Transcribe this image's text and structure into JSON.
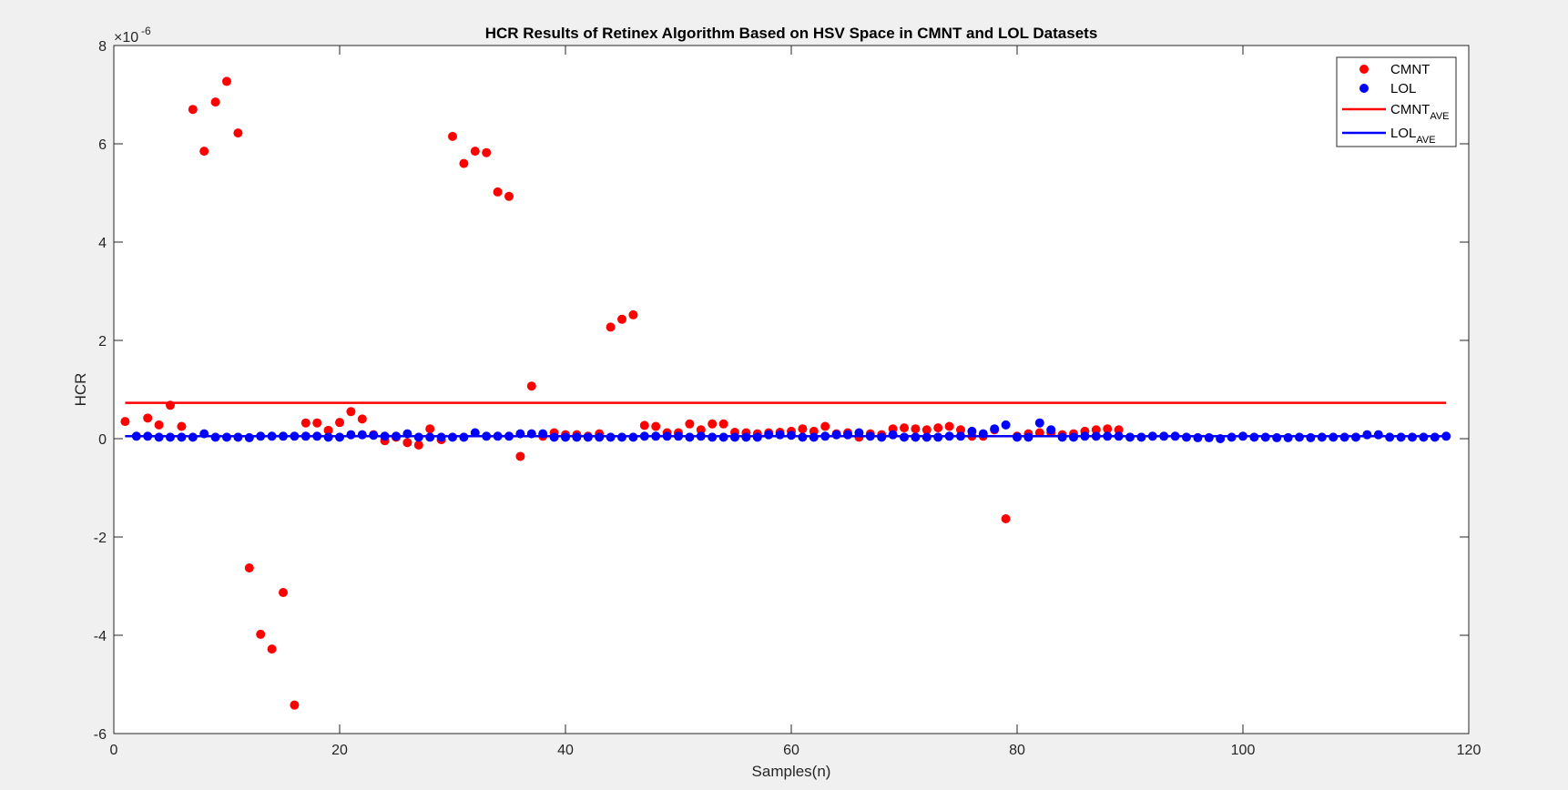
{
  "chart_data": {
    "type": "scatter",
    "title": "HCR Results of Retinex Algorithm Based on HSV Space in CMNT and LOL Datasets",
    "xlabel": "Samples(n)",
    "ylabel": "HCR",
    "y_exponent_base": "×10",
    "y_exponent_power": "-6",
    "xlim": [
      0,
      120
    ],
    "ylim": [
      -6,
      8
    ],
    "x_ticks": [
      0,
      20,
      40,
      60,
      80,
      100,
      120
    ],
    "y_ticks": [
      -6,
      -4,
      -2,
      0,
      2,
      4,
      6,
      8
    ],
    "grid": false,
    "legend_position": "top-right",
    "series": [
      {
        "name": "CMNT",
        "kind": "scatter",
        "color": "#ff0000",
        "points": [
          [
            1,
            0.35
          ],
          [
            3,
            0.42
          ],
          [
            4,
            0.28
          ],
          [
            5,
            0.68
          ],
          [
            6,
            0.25
          ],
          [
            7,
            6.7
          ],
          [
            8,
            5.85
          ],
          [
            9,
            6.85
          ],
          [
            10,
            7.27
          ],
          [
            11,
            6.22
          ],
          [
            12,
            -2.63
          ],
          [
            13,
            -3.98
          ],
          [
            14,
            -4.28
          ],
          [
            15,
            -3.13
          ],
          [
            16,
            -5.42
          ],
          [
            17,
            0.32
          ],
          [
            18,
            0.32
          ],
          [
            19,
            0.17
          ],
          [
            20,
            0.33
          ],
          [
            21,
            0.55
          ],
          [
            22,
            0.4
          ],
          [
            23,
            0.08
          ],
          [
            24,
            -0.04
          ],
          [
            25,
            0.03
          ],
          [
            26,
            -0.08
          ],
          [
            27,
            -0.13
          ],
          [
            28,
            0.2
          ],
          [
            29,
            -0.02
          ],
          [
            30,
            6.15
          ],
          [
            31,
            5.6
          ],
          [
            32,
            5.85
          ],
          [
            33,
            5.82
          ],
          [
            34,
            5.02
          ],
          [
            35,
            4.93
          ],
          [
            36,
            -0.36
          ],
          [
            37,
            1.07
          ],
          [
            38,
            0.05
          ],
          [
            39,
            0.12
          ],
          [
            40,
            0.08
          ],
          [
            41,
            0.08
          ],
          [
            42,
            0.05
          ],
          [
            43,
            0.1
          ],
          [
            44,
            2.27
          ],
          [
            45,
            2.43
          ],
          [
            46,
            2.52
          ],
          [
            47,
            0.27
          ],
          [
            48,
            0.25
          ],
          [
            49,
            0.12
          ],
          [
            50,
            0.12
          ],
          [
            51,
            0.3
          ],
          [
            52,
            0.18
          ],
          [
            53,
            0.3
          ],
          [
            54,
            0.3
          ],
          [
            55,
            0.13
          ],
          [
            56,
            0.12
          ],
          [
            57,
            0.1
          ],
          [
            58,
            0.12
          ],
          [
            59,
            0.13
          ],
          [
            60,
            0.15
          ],
          [
            61,
            0.2
          ],
          [
            62,
            0.15
          ],
          [
            63,
            0.25
          ],
          [
            64,
            0.1
          ],
          [
            65,
            0.12
          ],
          [
            66,
            0.03
          ],
          [
            67,
            0.1
          ],
          [
            68,
            0.08
          ],
          [
            69,
            0.2
          ],
          [
            70,
            0.22
          ],
          [
            71,
            0.2
          ],
          [
            72,
            0.18
          ],
          [
            73,
            0.22
          ],
          [
            74,
            0.25
          ],
          [
            75,
            0.18
          ],
          [
            76,
            0.05
          ],
          [
            77,
            0.05
          ],
          [
            78,
            0.18
          ],
          [
            79,
            -1.63
          ],
          [
            80,
            0.05
          ],
          [
            81,
            0.1
          ],
          [
            82,
            0.12
          ],
          [
            83,
            0.12
          ],
          [
            84,
            0.08
          ],
          [
            85,
            0.1
          ],
          [
            86,
            0.15
          ],
          [
            87,
            0.18
          ],
          [
            88,
            0.2
          ],
          [
            89,
            0.18
          ]
        ]
      },
      {
        "name": "LOL",
        "kind": "scatter",
        "color": "#0000ff",
        "points": [
          [
            2,
            0.05
          ],
          [
            3,
            0.05
          ],
          [
            4,
            0.03
          ],
          [
            5,
            0.03
          ],
          [
            6,
            0.03
          ],
          [
            7,
            0.03
          ],
          [
            8,
            0.1
          ],
          [
            9,
            0.03
          ],
          [
            10,
            0.03
          ],
          [
            11,
            0.03
          ],
          [
            12,
            0.02
          ],
          [
            13,
            0.05
          ],
          [
            14,
            0.05
          ],
          [
            15,
            0.05
          ],
          [
            16,
            0.05
          ],
          [
            17,
            0.05
          ],
          [
            18,
            0.05
          ],
          [
            19,
            0.03
          ],
          [
            20,
            0.03
          ],
          [
            21,
            0.08
          ],
          [
            22,
            0.08
          ],
          [
            23,
            0.07
          ],
          [
            24,
            0.05
          ],
          [
            25,
            0.05
          ],
          [
            26,
            0.1
          ],
          [
            27,
            0.03
          ],
          [
            28,
            0.03
          ],
          [
            29,
            0.03
          ],
          [
            30,
            0.03
          ],
          [
            31,
            0.03
          ],
          [
            32,
            0.12
          ],
          [
            33,
            0.05
          ],
          [
            34,
            0.05
          ],
          [
            35,
            0.05
          ],
          [
            36,
            0.1
          ],
          [
            37,
            0.1
          ],
          [
            38,
            0.1
          ],
          [
            39,
            0.03
          ],
          [
            40,
            0.03
          ],
          [
            41,
            0.03
          ],
          [
            42,
            0.03
          ],
          [
            43,
            0.03
          ],
          [
            44,
            0.03
          ],
          [
            45,
            0.03
          ],
          [
            46,
            0.03
          ],
          [
            47,
            0.05
          ],
          [
            48,
            0.05
          ],
          [
            49,
            0.05
          ],
          [
            50,
            0.05
          ],
          [
            51,
            0.03
          ],
          [
            52,
            0.05
          ],
          [
            53,
            0.03
          ],
          [
            54,
            0.03
          ],
          [
            55,
            0.03
          ],
          [
            56,
            0.03
          ],
          [
            57,
            0.03
          ],
          [
            58,
            0.08
          ],
          [
            59,
            0.08
          ],
          [
            60,
            0.07
          ],
          [
            61,
            0.03
          ],
          [
            62,
            0.03
          ],
          [
            63,
            0.05
          ],
          [
            64,
            0.08
          ],
          [
            65,
            0.08
          ],
          [
            66,
            0.12
          ],
          [
            67,
            0.05
          ],
          [
            68,
            0.03
          ],
          [
            69,
            0.08
          ],
          [
            70,
            0.03
          ],
          [
            71,
            0.03
          ],
          [
            72,
            0.03
          ],
          [
            73,
            0.03
          ],
          [
            74,
            0.05
          ],
          [
            75,
            0.05
          ],
          [
            76,
            0.15
          ],
          [
            77,
            0.1
          ],
          [
            78,
            0.2
          ],
          [
            79,
            0.28
          ],
          [
            80,
            0.03
          ],
          [
            81,
            0.03
          ],
          [
            82,
            0.32
          ],
          [
            83,
            0.18
          ],
          [
            84,
            0.03
          ],
          [
            85,
            0.03
          ],
          [
            86,
            0.05
          ],
          [
            87,
            0.05
          ],
          [
            88,
            0.05
          ],
          [
            89,
            0.05
          ],
          [
            90,
            0.03
          ],
          [
            91,
            0.03
          ],
          [
            92,
            0.05
          ],
          [
            93,
            0.05
          ],
          [
            94,
            0.05
          ],
          [
            95,
            0.03
          ],
          [
            96,
            0.02
          ],
          [
            97,
            0.02
          ],
          [
            98,
            0.0
          ],
          [
            99,
            0.03
          ],
          [
            100,
            0.05
          ],
          [
            101,
            0.03
          ],
          [
            102,
            0.03
          ],
          [
            103,
            0.02
          ],
          [
            104,
            0.02
          ],
          [
            105,
            0.03
          ],
          [
            106,
            0.02
          ],
          [
            107,
            0.03
          ],
          [
            108,
            0.03
          ],
          [
            109,
            0.03
          ],
          [
            110,
            0.03
          ],
          [
            111,
            0.08
          ],
          [
            112,
            0.08
          ],
          [
            113,
            0.03
          ],
          [
            114,
            0.03
          ],
          [
            115,
            0.03
          ],
          [
            116,
            0.03
          ],
          [
            117,
            0.03
          ],
          [
            118,
            0.05
          ]
        ]
      },
      {
        "name": "CMNT",
        "name_subscript": "AVE",
        "kind": "line",
        "color": "#ff0000",
        "points": [
          [
            1,
            0.73
          ],
          [
            118,
            0.73
          ]
        ]
      },
      {
        "name": "LOL",
        "name_subscript": "AVE",
        "kind": "line",
        "color": "#0000ff",
        "points": [
          [
            1,
            0.05
          ],
          [
            118,
            0.05
          ]
        ]
      }
    ]
  }
}
